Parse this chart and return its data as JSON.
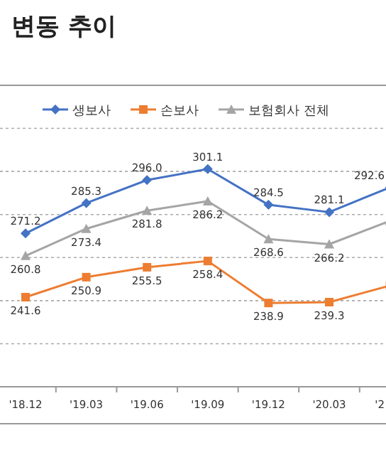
{
  "chart_data": {
    "type": "line",
    "title": "변동 추이",
    "categories": [
      "'18.12",
      "'19.03",
      "'19.06",
      "'19.09",
      "'19.12",
      "'20.03",
      "'2"
    ],
    "series": [
      {
        "name": "생보사",
        "color": "#4472c4",
        "marker": "diamond",
        "values": [
          271.2,
          285.3,
          296.0,
          301.1,
          284.5,
          281.1,
          292.6
        ],
        "value_labels": [
          "271.2",
          "285.3",
          "296.0",
          "301.1",
          "284.5",
          "281.1",
          "292.6"
        ]
      },
      {
        "name": "손보사",
        "color": "#ed7d31",
        "marker": "square",
        "values": [
          241.6,
          250.9,
          255.5,
          258.4,
          238.9,
          239.3,
          247
        ],
        "value_labels": [
          "241.6",
          "250.9",
          "255.5",
          "258.4",
          "238.9",
          "239.3",
          null
        ]
      },
      {
        "name": "보험회사 전체",
        "color": "#a5a5a5",
        "marker": "triangle",
        "values": [
          260.8,
          273.4,
          281.8,
          286.2,
          268.6,
          266.2,
          277
        ],
        "value_labels": [
          "260.8",
          "273.4",
          "281.8",
          "286.2",
          "268.6",
          "266.2",
          null
        ]
      }
    ],
    "ylim": [
      200,
      340
    ],
    "yticks": [
      {
        "value": 220,
        "label": null
      },
      {
        "value": 240,
        "label": null
      },
      {
        "value": 260,
        "label": null
      },
      {
        "value": 280,
        "label": null
      },
      {
        "value": 300,
        "label": null
      },
      {
        "value": 320,
        "label": null
      }
    ],
    "grid": "y",
    "legend": "top",
    "tick_labels": "x",
    "data_labels": true
  }
}
